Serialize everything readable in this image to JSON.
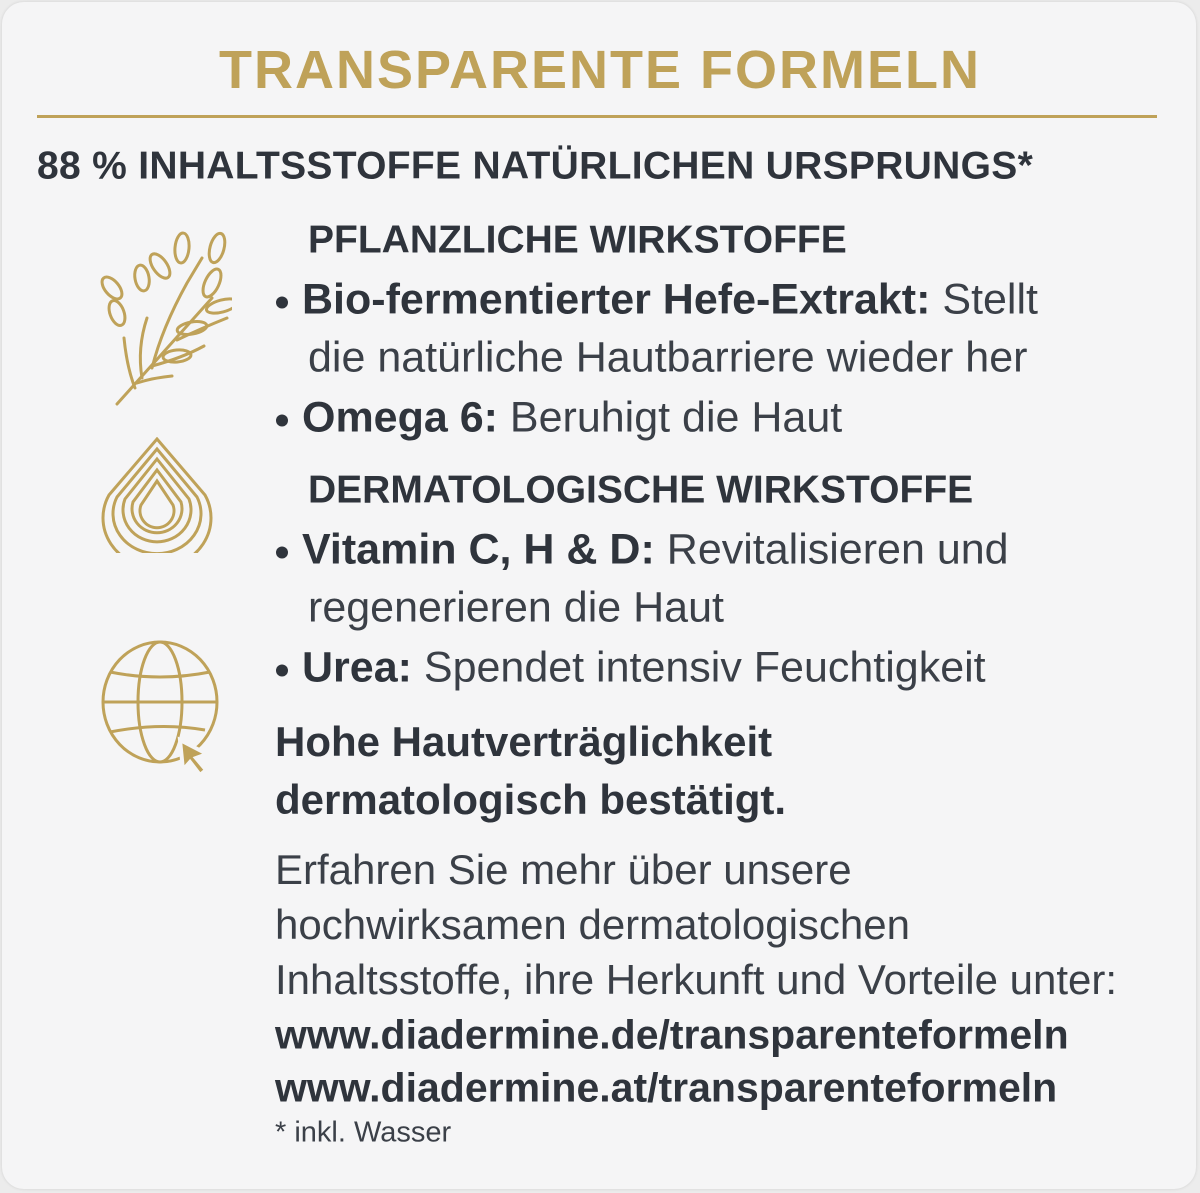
{
  "title": "TRANSPARENTE FORMELN",
  "subtitle": "88 % INHALTSSTOFFE NATÜRLICHEN URSPRUNGS*",
  "colors": {
    "gold": "#bfa259",
    "text": "#2f343c",
    "background": "#f5f5f6"
  },
  "sections": [
    {
      "icon": "plant-branch-icon",
      "heading": "PFLANZLICHE WIRKSTOFFE",
      "items": [
        {
          "name": "Bio-fermentierter Hefe-Extrakt:",
          "desc_line1": "Stellt",
          "desc_line2": "die natürliche Hautbarriere wieder her"
        },
        {
          "name": "Omega 6:",
          "desc_line1": "Beruhigt die Haut"
        }
      ]
    },
    {
      "icon": "water-drop-icon",
      "heading": "DERMATOLOGISCHE WIRKSTOFFE",
      "items": [
        {
          "name": "Vitamin C, H & D:",
          "desc_line1": "Revitalisieren und",
          "desc_line2": "regenerieren die Haut"
        },
        {
          "name": "Urea:",
          "desc_line1": "Spendet intensiv Feuchtigkeit"
        }
      ]
    }
  ],
  "tolerance": {
    "line1": "Hohe Hautverträglichkeit",
    "line2": "dermatologisch bestätigt."
  },
  "info": {
    "icon": "globe-cursor-icon",
    "line1": "Erfahren Sie mehr über unsere",
    "line2": "hochwirksamen dermatologischen",
    "line3": "Inhaltsstoffe, ihre Herkunft und Vorteile unter:",
    "url_de": "www.diadermine.de/transparenteformeln",
    "url_at": "www.diadermine.at/transparenteformeln"
  },
  "footnote": "* inkl. Wasser"
}
